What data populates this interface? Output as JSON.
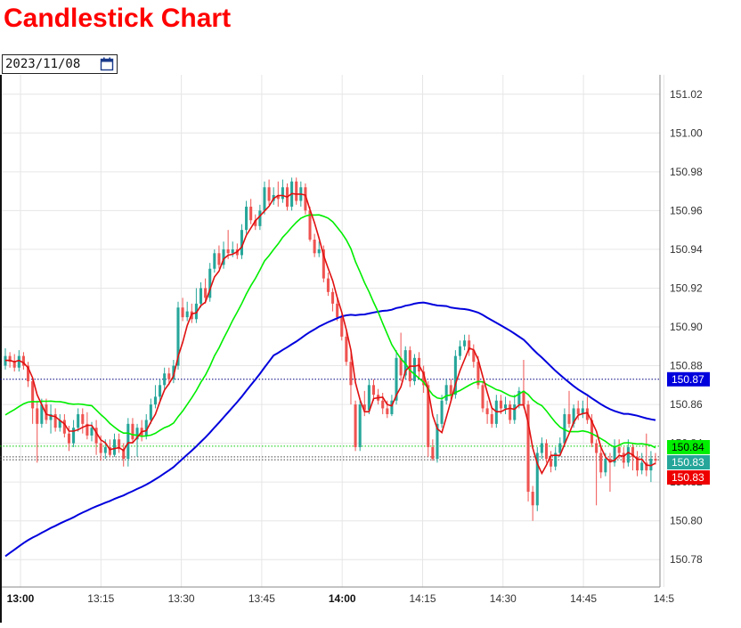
{
  "header": {
    "title": "Candlestick Chart"
  },
  "date_picker": {
    "value": "2023/11/08",
    "icon": "calendar-icon"
  },
  "colors": {
    "up": "#26a69a",
    "down": "#ef5350",
    "ma_fast": "#e01010",
    "ma_mid": "#00ee00",
    "ma_slow": "#0000dd",
    "grid": "#e6e6e6"
  },
  "chart_data": {
    "type": "candlestick",
    "title": "",
    "ylim": [
      150.77,
      151.03
    ],
    "y_ticks": [
      "150.78",
      "150.80",
      "150.82",
      "150.84",
      "150.86",
      "150.88",
      "150.90",
      "150.92",
      "150.94",
      "150.96",
      "150.98",
      "151.00",
      "151.02"
    ],
    "x_ticks": [
      {
        "label": "13:00",
        "bold": true
      },
      {
        "label": "13:15",
        "bold": false
      },
      {
        "label": "13:30",
        "bold": false
      },
      {
        "label": "13:45",
        "bold": false
      },
      {
        "label": "14:00",
        "bold": true
      },
      {
        "label": "14:15",
        "bold": false
      },
      {
        "label": "14:30",
        "bold": false
      },
      {
        "label": "14:45",
        "bold": false
      },
      {
        "label": "14:5",
        "bold": false
      }
    ],
    "price_tags": [
      {
        "label": "150.87",
        "value": 150.873,
        "bg": "#0000dd",
        "fg": "#ffffff",
        "line": "#000080"
      },
      {
        "label": "150.84",
        "value": 150.8385,
        "bg": "#00ee00",
        "fg": "#000000",
        "line": "#00cc00"
      },
      {
        "label": "150.83",
        "value": 150.833,
        "bg": "#26a69a",
        "fg": "#ffffff",
        "line": "#444444"
      },
      {
        "label": "150.83",
        "value": 150.8315,
        "bg": "#ee0000",
        "fg": "#ffffff",
        "line": "#444444"
      }
    ],
    "candles": [
      [
        150.88,
        150.885,
        150.889,
        150.878
      ],
      [
        150.885,
        150.882,
        150.887,
        150.879
      ],
      [
        150.882,
        150.879,
        150.886,
        150.877
      ],
      [
        150.879,
        150.885,
        150.888,
        150.877
      ],
      [
        150.885,
        150.88,
        150.887,
        150.878
      ],
      [
        150.88,
        150.872,
        150.882,
        150.869
      ],
      [
        150.872,
        150.858,
        150.874,
        150.85
      ],
      [
        150.858,
        150.85,
        150.862,
        150.83
      ],
      [
        150.85,
        150.86,
        150.863,
        150.848
      ],
      [
        150.86,
        150.852,
        150.863,
        150.85
      ],
      [
        150.852,
        150.855,
        150.86,
        150.845
      ],
      [
        150.855,
        150.848,
        150.858,
        150.846
      ],
      [
        150.848,
        150.852,
        150.855,
        150.846
      ],
      [
        150.852,
        150.845,
        150.855,
        150.843
      ],
      [
        150.845,
        150.84,
        150.849,
        150.836
      ],
      [
        150.84,
        150.848,
        150.852,
        150.838
      ],
      [
        150.848,
        150.855,
        150.858,
        150.846
      ],
      [
        150.855,
        150.85,
        150.858,
        150.845
      ],
      [
        150.85,
        150.844,
        150.856,
        150.842
      ],
      [
        150.844,
        150.848,
        150.851,
        150.841
      ],
      [
        150.848,
        150.84,
        150.852,
        150.834
      ],
      [
        150.84,
        150.835,
        150.844,
        150.831
      ],
      [
        150.835,
        150.838,
        150.842,
        150.832
      ],
      [
        150.838,
        150.834,
        150.842,
        150.833
      ],
      [
        150.834,
        150.842,
        150.845,
        150.833
      ],
      [
        150.842,
        150.837,
        150.845,
        150.835
      ],
      [
        150.837,
        150.832,
        150.84,
        150.828
      ],
      [
        150.832,
        150.85,
        150.853,
        150.828
      ],
      [
        150.85,
        150.842,
        150.853,
        150.84
      ],
      [
        150.842,
        150.848,
        150.85,
        150.833
      ],
      [
        150.848,
        150.844,
        150.852,
        150.841
      ],
      [
        150.844,
        150.852,
        150.855,
        150.842
      ],
      [
        150.852,
        150.86,
        150.863,
        150.85
      ],
      [
        150.86,
        150.864,
        150.87,
        150.858
      ],
      [
        150.864,
        150.87,
        150.873,
        150.862
      ],
      [
        150.87,
        150.876,
        150.879,
        150.868
      ],
      [
        150.876,
        150.873,
        150.879,
        150.87
      ],
      [
        150.873,
        150.88,
        150.883,
        150.871
      ],
      [
        150.88,
        150.91,
        150.913,
        150.878
      ],
      [
        150.91,
        150.905,
        150.915,
        150.903
      ],
      [
        150.905,
        150.908,
        150.913,
        150.903
      ],
      [
        150.908,
        150.904,
        150.912,
        150.902
      ],
      [
        150.904,
        150.912,
        150.92,
        150.902
      ],
      [
        150.912,
        150.92,
        150.923,
        150.91
      ],
      [
        150.92,
        150.915,
        150.925,
        150.912
      ],
      [
        150.915,
        150.93,
        150.933,
        150.913
      ],
      [
        150.93,
        150.938,
        150.94,
        150.928
      ],
      [
        150.938,
        150.932,
        150.942,
        150.93
      ],
      [
        150.932,
        150.94,
        150.944,
        150.93
      ],
      [
        150.94,
        150.938,
        150.95,
        150.935
      ],
      [
        150.938,
        150.94,
        150.944,
        150.936
      ],
      [
        150.94,
        150.937,
        150.943,
        150.935
      ],
      [
        150.937,
        150.95,
        150.953,
        150.935
      ],
      [
        150.95,
        150.962,
        150.965,
        150.948
      ],
      [
        150.962,
        150.955,
        150.966,
        150.953
      ],
      [
        150.955,
        150.952,
        150.958,
        150.95
      ],
      [
        150.952,
        150.96,
        150.963,
        150.95
      ],
      [
        150.96,
        150.972,
        150.975,
        150.958
      ],
      [
        150.972,
        150.965,
        150.976,
        150.963
      ],
      [
        150.965,
        150.968,
        150.972,
        150.963
      ],
      [
        150.968,
        150.966,
        150.975,
        150.962
      ],
      [
        150.966,
        150.972,
        150.976,
        150.964
      ],
      [
        150.972,
        150.962,
        150.974,
        150.96
      ],
      [
        150.962,
        150.975,
        150.977,
        150.96
      ],
      [
        150.975,
        150.965,
        150.977,
        150.963
      ],
      [
        150.965,
        150.972,
        150.975,
        150.962
      ],
      [
        150.972,
        150.96,
        150.974,
        150.958
      ],
      [
        150.96,
        150.945,
        150.962,
        150.944
      ],
      [
        150.945,
        150.938,
        150.948,
        150.936
      ],
      [
        150.938,
        150.94,
        150.944,
        150.936
      ],
      [
        150.94,
        150.925,
        150.942,
        150.923
      ],
      [
        150.925,
        150.918,
        150.928,
        150.916
      ],
      [
        150.918,
        150.912,
        150.92,
        150.908
      ],
      [
        150.912,
        150.905,
        150.915,
        150.903
      ],
      [
        150.905,
        150.895,
        150.908,
        150.893
      ],
      [
        150.895,
        150.882,
        150.898,
        150.88
      ],
      [
        150.882,
        150.87,
        150.888,
        150.86
      ],
      [
        150.86,
        150.838,
        150.862,
        150.836
      ],
      [
        150.838,
        150.86,
        150.862,
        150.836
      ],
      [
        150.86,
        150.857,
        150.867,
        150.854
      ],
      [
        150.857,
        150.87,
        150.873,
        150.855
      ],
      [
        150.87,
        150.865,
        150.873,
        150.862
      ],
      [
        150.865,
        150.862,
        150.868,
        150.86
      ],
      [
        150.862,
        150.858,
        150.866,
        150.855
      ],
      [
        150.858,
        150.855,
        150.862,
        150.853
      ],
      [
        150.855,
        150.862,
        150.865,
        150.854
      ],
      [
        150.862,
        150.884,
        150.888,
        150.86
      ],
      [
        150.884,
        150.875,
        150.897,
        150.872
      ],
      [
        150.875,
        150.888,
        150.89,
        150.873
      ],
      [
        150.888,
        150.872,
        150.89,
        150.869
      ],
      [
        150.872,
        150.884,
        150.886,
        150.87
      ],
      [
        150.884,
        150.877,
        150.887,
        150.874
      ],
      [
        150.877,
        150.87,
        150.88,
        150.866
      ],
      [
        150.87,
        150.838,
        150.872,
        150.833
      ],
      [
        150.838,
        150.832,
        150.842,
        150.831
      ],
      [
        150.832,
        150.85,
        150.855,
        150.83
      ],
      [
        150.85,
        150.862,
        150.865,
        150.848
      ],
      [
        150.862,
        150.87,
        150.873,
        150.86
      ],
      [
        150.87,
        150.865,
        150.873,
        150.862
      ],
      [
        150.865,
        150.885,
        150.888,
        150.863
      ],
      [
        150.885,
        150.89,
        150.893,
        150.883
      ],
      [
        150.89,
        150.893,
        150.896,
        150.888
      ],
      [
        150.893,
        150.888,
        150.896,
        150.885
      ],
      [
        150.888,
        150.882,
        150.891,
        150.879
      ],
      [
        150.882,
        150.87,
        150.885,
        150.868
      ],
      [
        150.87,
        150.858,
        150.872,
        150.856
      ],
      [
        150.858,
        150.855,
        150.862,
        150.85
      ],
      [
        150.855,
        150.85,
        150.858,
        150.848
      ],
      [
        150.85,
        150.862,
        150.865,
        150.848
      ],
      [
        150.862,
        150.858,
        150.865,
        150.855
      ],
      [
        150.858,
        150.86,
        150.864,
        150.855
      ],
      [
        150.86,
        150.852,
        150.862,
        150.85
      ],
      [
        150.852,
        150.86,
        150.865,
        150.85
      ],
      [
        150.86,
        150.867,
        150.869,
        150.858
      ],
      [
        150.867,
        150.86,
        150.883,
        150.858
      ],
      [
        150.86,
        150.815,
        150.862,
        150.81
      ],
      [
        150.815,
        150.808,
        150.818,
        150.8
      ],
      [
        150.808,
        150.835,
        150.838,
        150.805
      ],
      [
        150.835,
        150.84,
        150.843,
        150.832
      ],
      [
        150.84,
        150.832,
        150.842,
        150.83
      ],
      [
        150.832,
        150.828,
        150.836,
        150.825
      ],
      [
        150.828,
        150.835,
        150.838,
        150.826
      ],
      [
        150.835,
        150.84,
        150.843,
        150.833
      ],
      [
        150.84,
        150.855,
        150.858,
        150.838
      ],
      [
        150.855,
        150.85,
        150.867,
        150.848
      ],
      [
        150.85,
        150.858,
        150.86,
        150.848
      ],
      [
        150.858,
        150.855,
        150.862,
        150.852
      ],
      [
        150.855,
        150.858,
        150.862,
        150.853
      ],
      [
        150.858,
        150.852,
        150.864,
        150.85
      ],
      [
        150.852,
        150.84,
        150.855,
        150.838
      ],
      [
        150.84,
        150.835,
        150.842,
        150.808
      ],
      [
        150.835,
        150.825,
        150.838,
        150.822
      ],
      [
        150.825,
        150.832,
        150.835,
        150.823
      ],
      [
        150.832,
        150.83,
        150.835,
        150.815
      ],
      [
        150.83,
        150.838,
        150.842,
        150.828
      ],
      [
        150.838,
        150.835,
        150.842,
        150.832
      ],
      [
        150.835,
        150.83,
        150.838,
        150.827
      ],
      [
        150.83,
        150.838,
        150.842,
        150.828
      ],
      [
        150.838,
        150.833,
        150.84,
        150.826
      ],
      [
        150.833,
        150.826,
        150.836,
        150.823
      ],
      [
        150.826,
        150.83,
        150.835,
        150.824
      ],
      [
        150.83,
        150.826,
        150.845,
        150.823
      ],
      [
        150.826,
        150.832,
        150.836,
        150.82
      ],
      [
        150.832,
        150.831,
        150.835,
        150.829
      ]
    ]
  }
}
